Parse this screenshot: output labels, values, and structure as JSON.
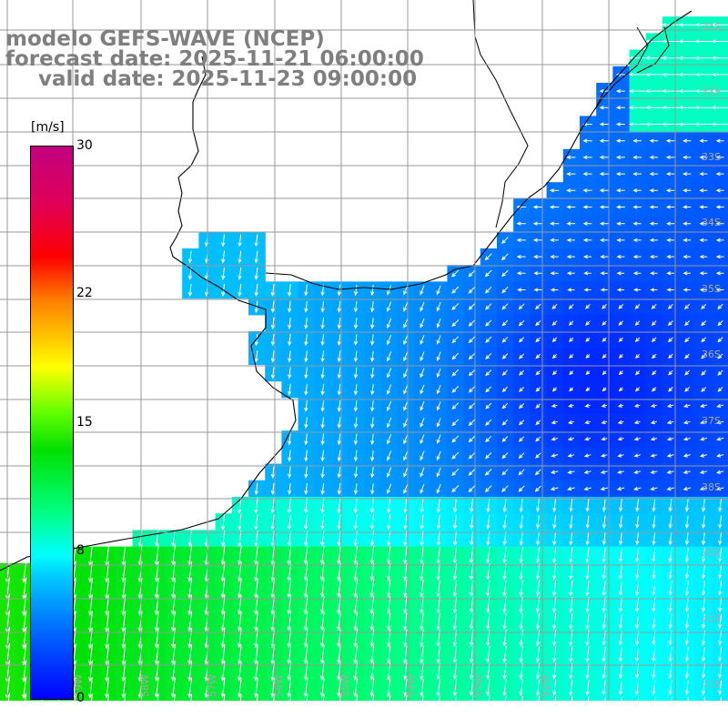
{
  "title": {
    "line1": "modelo GEFS-WAVE (NCEP)",
    "line2": "forecast date: 2025-11-21 06:00:00",
    "line3": "valid date: 2025-11-23 09:00:00"
  },
  "colorbar": {
    "unit": "[m/s]",
    "min": 0,
    "max": 30,
    "ticks": [
      "30",
      "22",
      "15",
      "8",
      "0"
    ],
    "tick_values": [
      30,
      22,
      15,
      8,
      0
    ],
    "colors": {
      "low": "#0000ff",
      "mid": "#00ffff",
      "green": "#00e000",
      "yellow": "#ffff00",
      "high": "#c0007f"
    }
  },
  "map": {
    "lat_labels": [
      "31S",
      "32S",
      "33S",
      "34S",
      "35S",
      "36S",
      "37S",
      "38S",
      "39S",
      "40S",
      "41S"
    ],
    "lon_labels": [
      "59W",
      "58W",
      "57W",
      "56W",
      "55W",
      "54W",
      "53W",
      "52W"
    ],
    "grid_color": "#999999",
    "coast_color": "#000000",
    "arrow_color": "#ffffff",
    "label_color": "#aaaaaa"
  }
}
